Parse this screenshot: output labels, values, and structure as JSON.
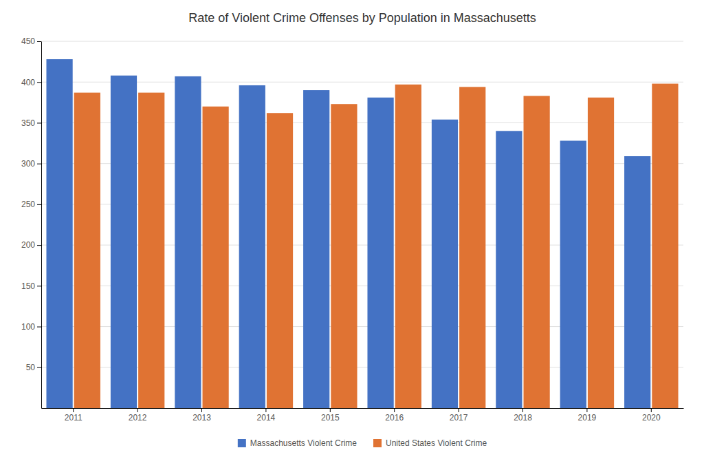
{
  "chart_data": {
    "type": "bar",
    "title": "Rate of Violent Crime Offenses by Population in Massachusetts",
    "categories": [
      "2011",
      "2012",
      "2013",
      "2014",
      "2015",
      "2016",
      "2017",
      "2018",
      "2019",
      "2020"
    ],
    "series": [
      {
        "name": "Massachusetts Violent Crime",
        "color": "#4472c4",
        "values": [
          428,
          408,
          407,
          396,
          390,
          381,
          354,
          340,
          328,
          309
        ]
      },
      {
        "name": "United States Violent Crime",
        "color": "#e07333",
        "values": [
          387,
          387,
          370,
          362,
          373,
          397,
          394,
          383,
          381,
          398
        ]
      }
    ],
    "ylim": [
      0,
      450
    ],
    "yticks": [
      50,
      100,
      150,
      200,
      250,
      300,
      350,
      400,
      450
    ],
    "grid": true,
    "legend": "bottom"
  }
}
